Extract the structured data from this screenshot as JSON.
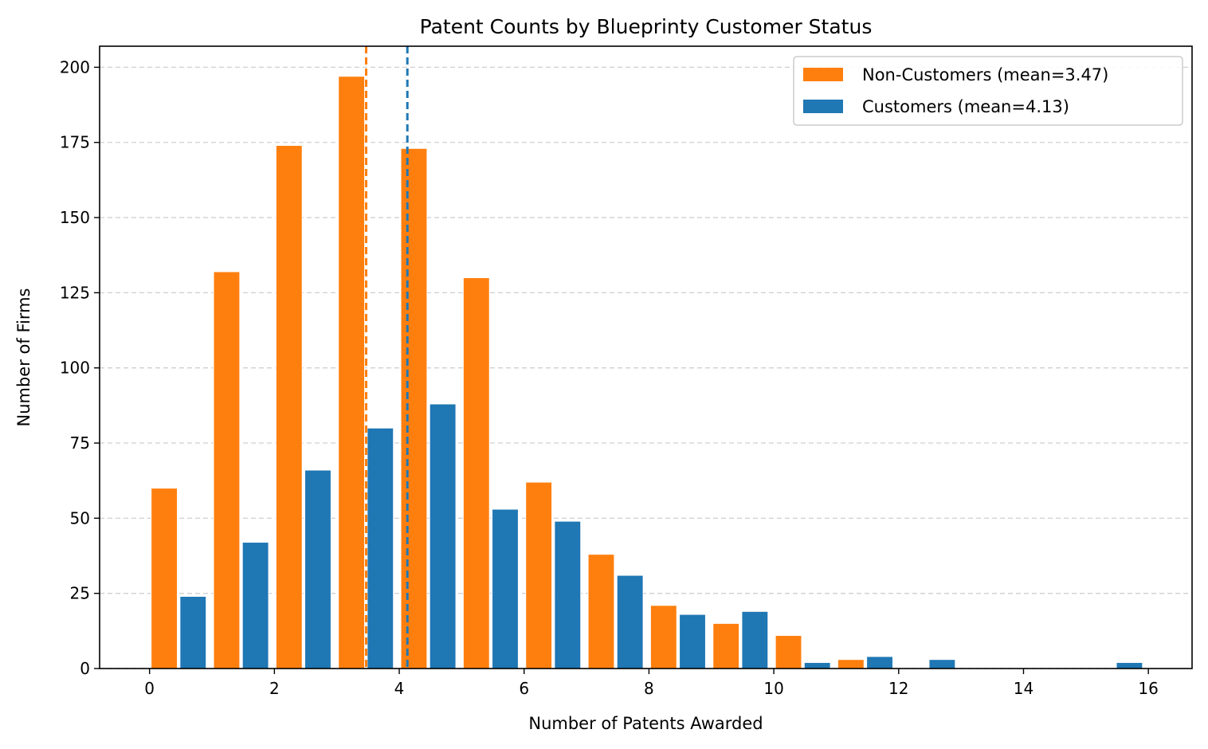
{
  "chart_data": {
    "type": "bar",
    "title": "Patent Counts by Blueprinty Customer Status",
    "xlabel": "Number of Patents Awarded",
    "ylabel": "Number of Firms",
    "xlim": [
      -0.8,
      16.7
    ],
    "ylim": [
      0,
      207
    ],
    "x_ticks": [
      0,
      2,
      4,
      6,
      8,
      10,
      12,
      14,
      16
    ],
    "y_ticks": [
      0,
      25,
      50,
      75,
      100,
      125,
      150,
      175,
      200
    ],
    "grid": "horizontal dashed",
    "legend_position": "top-right",
    "series": [
      {
        "name": "Non-Customers (mean=3.47)",
        "color": "#ff7f0e",
        "mean": 3.47,
        "x": [
          0,
          1,
          2,
          3,
          4,
          5,
          6,
          7,
          8,
          9,
          10,
          11,
          12,
          13,
          14,
          15
        ],
        "values": [
          60,
          132,
          174,
          197,
          173,
          130,
          62,
          38,
          21,
          15,
          11,
          3,
          0,
          0,
          0,
          0
        ]
      },
      {
        "name": "Customers (mean=4.13)",
        "color": "#1f77b4",
        "mean": 4.13,
        "x": [
          0,
          1,
          2,
          3,
          4,
          5,
          6,
          7,
          8,
          9,
          10,
          11,
          12,
          13,
          14,
          15
        ],
        "values": [
          24,
          42,
          66,
          80,
          88,
          53,
          49,
          31,
          18,
          19,
          2,
          4,
          3,
          0,
          0,
          2
        ]
      }
    ]
  }
}
